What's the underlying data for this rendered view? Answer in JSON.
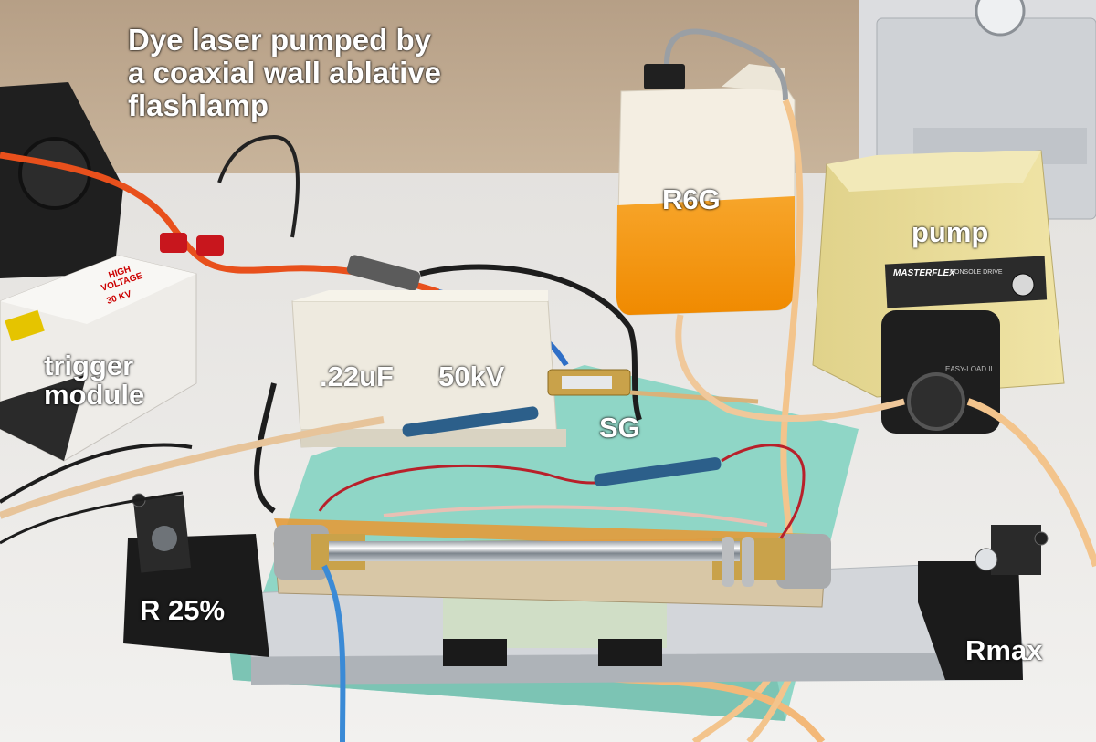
{
  "title_lines": [
    "Dye laser pumped by",
    "a coaxial wall ablative",
    "flashlamp"
  ],
  "labels": {
    "r6g": "R6G",
    "pump": "pump",
    "trigger_module": [
      "trigger",
      "module"
    ],
    "capacitance": ".22uF",
    "voltage": "50kV",
    "spark_gap": "SG",
    "output_coupler": "R 25%",
    "rear_mirror": "Rmax"
  },
  "printed_text": {
    "trigger_box": [
      "HIGH",
      "VOLTAGE",
      "30 KV"
    ],
    "pump_brand": "MASTERFLEX",
    "pump_model": "CONSOLE DRIVE",
    "pump_head": "EASY-LOAD II"
  },
  "colors": {
    "label_text": "#ffffff",
    "dye": "#f59a0f",
    "foam": "#8fd6c6",
    "tubing": "#f3c48c",
    "hv_cable": "#e8501c"
  }
}
